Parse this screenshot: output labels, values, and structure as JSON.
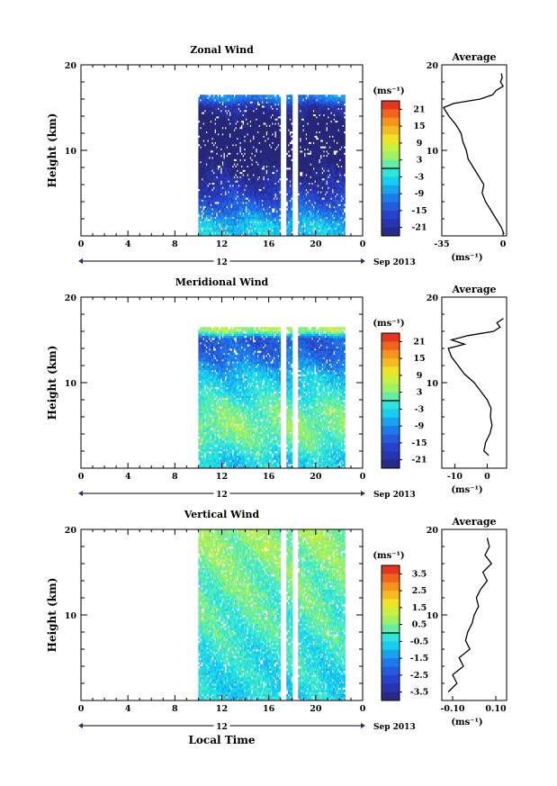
{
  "chart_data": [
    {
      "type": "heatmap",
      "title": "Zonal Wind",
      "ylabel": "Height (km)",
      "xlabel": "",
      "xlim": [
        0,
        24
      ],
      "ylim": [
        0,
        20
      ],
      "x_ticks": [
        "0",
        "4",
        "8",
        "12",
        "16",
        "20",
        "0"
      ],
      "x_tick_values": [
        0,
        4,
        8,
        12,
        16,
        20,
        24
      ],
      "y_ticks": [
        "20",
        "10"
      ],
      "date_label": "12",
      "date_suffix": "Sep 2013",
      "colorbar": {
        "unit": "(ms⁻¹)",
        "ticks": [
          "21",
          "15",
          "9",
          "3",
          "-3",
          "-9",
          "-15",
          "-21"
        ],
        "range": [
          -24,
          24
        ]
      },
      "data_window": {
        "start_hour": 10,
        "end_hour": 22.5,
        "bottom_km": 0,
        "top_km": 16.5
      },
      "gaps_hours": [
        17.2,
        18.2
      ],
      "profile_points": [
        {
          "height_km": 1,
          "value": -5
        },
        {
          "height_km": 3,
          "value": -12
        },
        {
          "height_km": 5,
          "value": -18
        },
        {
          "height_km": 7,
          "value": -22
        },
        {
          "height_km": 9,
          "value": -26
        },
        {
          "height_km": 11,
          "value": -28
        },
        {
          "height_km": 13,
          "value": -26
        },
        {
          "height_km": 15,
          "value": -20
        },
        {
          "height_km": 16,
          "value": -10
        }
      ],
      "average": {
        "title": "Average",
        "unit": "(ms⁻¹)",
        "xlim": [
          -35,
          2
        ],
        "x_ticks": [
          "-35",
          "0"
        ],
        "x_tick_values": [
          -35,
          0
        ],
        "y_ticks": [
          "20",
          "10"
        ],
        "profile": [
          {
            "height_km": 0.2,
            "value": 0.5
          },
          {
            "height_km": 1,
            "value": -1
          },
          {
            "height_km": 2,
            "value": -4
          },
          {
            "height_km": 3,
            "value": -7
          },
          {
            "height_km": 4,
            "value": -10
          },
          {
            "height_km": 5,
            "value": -12
          },
          {
            "height_km": 6,
            "value": -11
          },
          {
            "height_km": 7,
            "value": -14
          },
          {
            "height_km": 8,
            "value": -17
          },
          {
            "height_km": 9,
            "value": -20
          },
          {
            "height_km": 10,
            "value": -21
          },
          {
            "height_km": 11,
            "value": -23
          },
          {
            "height_km": 12,
            "value": -24
          },
          {
            "height_km": 13,
            "value": -27
          },
          {
            "height_km": 14,
            "value": -31
          },
          {
            "height_km": 15,
            "value": -34
          },
          {
            "height_km": 15.5,
            "value": -28
          },
          {
            "height_km": 16,
            "value": -13
          },
          {
            "height_km": 16.5,
            "value": -6
          },
          {
            "height_km": 17,
            "value": -4
          },
          {
            "height_km": 17.5,
            "value": 0
          },
          {
            "height_km": 18,
            "value": -1.5
          },
          {
            "height_km": 18.5,
            "value": -0.5
          },
          {
            "height_km": 19,
            "value": -1
          }
        ]
      }
    },
    {
      "type": "heatmap",
      "title": "Meridional Wind",
      "ylabel": "Height (km)",
      "xlabel": "",
      "xlim": [
        0,
        24
      ],
      "ylim": [
        0,
        20
      ],
      "x_ticks": [
        "0",
        "4",
        "8",
        "12",
        "16",
        "20",
        "0"
      ],
      "x_tick_values": [
        0,
        4,
        8,
        12,
        16,
        20,
        24
      ],
      "y_ticks": [
        "20",
        "10"
      ],
      "date_label": "12",
      "date_suffix": "Sep 2013",
      "colorbar": {
        "unit": "(ms⁻¹)",
        "ticks": [
          "21",
          "15",
          "9",
          "3",
          "-3",
          "-9",
          "-15",
          "-21"
        ],
        "range": [
          -24,
          24
        ]
      },
      "data_window": {
        "start_hour": 10,
        "end_hour": 22.5,
        "bottom_km": 0,
        "top_km": 16.5
      },
      "gaps_hours": [
        17.2,
        18.2
      ],
      "profile_points": [
        {
          "height_km": 1,
          "value": -4
        },
        {
          "height_km": 3,
          "value": 1
        },
        {
          "height_km": 5,
          "value": 3
        },
        {
          "height_km": 7,
          "value": 1
        },
        {
          "height_km": 9,
          "value": -3
        },
        {
          "height_km": 11,
          "value": -6
        },
        {
          "height_km": 13,
          "value": -12
        },
        {
          "height_km": 15,
          "value": -14
        },
        {
          "height_km": 16,
          "value": 5
        }
      ],
      "average": {
        "title": "Average",
        "unit": "(ms⁻¹)",
        "xlim": [
          -14,
          6
        ],
        "x_ticks": [
          "-10",
          "0"
        ],
        "x_tick_values": [
          -10,
          0
        ],
        "y_ticks": [
          "20",
          "10"
        ],
        "profile": [
          {
            "height_km": 1.5,
            "value": 0.5
          },
          {
            "height_km": 2,
            "value": -1
          },
          {
            "height_km": 3,
            "value": -0.5
          },
          {
            "height_km": 4,
            "value": 0.8
          },
          {
            "height_km": 5,
            "value": 1.5
          },
          {
            "height_km": 6,
            "value": 1
          },
          {
            "height_km": 7,
            "value": 1.2
          },
          {
            "height_km": 8,
            "value": 0
          },
          {
            "height_km": 9,
            "value": -2
          },
          {
            "height_km": 10,
            "value": -4
          },
          {
            "height_km": 11,
            "value": -7
          },
          {
            "height_km": 12,
            "value": -9
          },
          {
            "height_km": 13,
            "value": -11
          },
          {
            "height_km": 14,
            "value": -12
          },
          {
            "height_km": 14.5,
            "value": -7
          },
          {
            "height_km": 15,
            "value": -11
          },
          {
            "height_km": 15.5,
            "value": -6
          },
          {
            "height_km": 16,
            "value": 2
          },
          {
            "height_km": 16.5,
            "value": 4
          },
          {
            "height_km": 17,
            "value": 3
          },
          {
            "height_km": 17.5,
            "value": 5
          }
        ]
      }
    },
    {
      "type": "heatmap",
      "title": "Vertical Wind",
      "ylabel": "Height (km)",
      "xlabel": "Local Time",
      "xlim": [
        0,
        24
      ],
      "ylim": [
        0,
        20
      ],
      "x_ticks": [
        "0",
        "4",
        "8",
        "12",
        "16",
        "20",
        "0"
      ],
      "x_tick_values": [
        0,
        4,
        8,
        12,
        16,
        20,
        24
      ],
      "y_ticks": [
        "20",
        "10"
      ],
      "date_label": "12",
      "date_suffix": "Sep 2013",
      "colorbar": {
        "unit": "(ms⁻¹)",
        "ticks": [
          "3.5",
          "2.5",
          "1.5",
          "0.5",
          "-0.5",
          "-1.5",
          "-2.5",
          "-3.5"
        ],
        "range": [
          -4,
          4
        ]
      },
      "data_window": {
        "start_hour": 10,
        "end_hour": 22.5,
        "bottom_km": 0,
        "top_km": 20
      },
      "gaps_hours": [
        17.2,
        18.2
      ],
      "profile_points": [
        {
          "height_km": 1,
          "value": -0.6
        },
        {
          "height_km": 4,
          "value": -0.4
        },
        {
          "height_km": 8,
          "value": -0.1
        },
        {
          "height_km": 12,
          "value": 0.2
        },
        {
          "height_km": 16,
          "value": 0.4
        },
        {
          "height_km": 19,
          "value": 0.6
        }
      ],
      "average": {
        "title": "Average",
        "unit": "(ms⁻¹)",
        "xlim": [
          -0.15,
          0.15
        ],
        "x_ticks": [
          "-0.10",
          "0.10"
        ],
        "x_tick_values": [
          -0.1,
          0.1
        ],
        "y_ticks": [
          "20",
          "10"
        ],
        "profile": [
          {
            "height_km": 1,
            "value": -0.12
          },
          {
            "height_km": 2,
            "value": -0.08
          },
          {
            "height_km": 3,
            "value": -0.1
          },
          {
            "height_km": 4,
            "value": -0.05
          },
          {
            "height_km": 5,
            "value": -0.07
          },
          {
            "height_km": 6,
            "value": -0.02
          },
          {
            "height_km": 7,
            "value": -0.04
          },
          {
            "height_km": 8,
            "value": -0.03
          },
          {
            "height_km": 9,
            "value": -0.01
          },
          {
            "height_km": 10,
            "value": 0.0
          },
          {
            "height_km": 11,
            "value": 0.02
          },
          {
            "height_km": 12,
            "value": 0.01
          },
          {
            "height_km": 13,
            "value": 0.03
          },
          {
            "height_km": 14,
            "value": 0.06
          },
          {
            "height_km": 15,
            "value": 0.04
          },
          {
            "height_km": 16,
            "value": 0.08
          },
          {
            "height_km": 17,
            "value": 0.05
          },
          {
            "height_km": 18,
            "value": 0.07
          },
          {
            "height_km": 19,
            "value": 0.06
          }
        ]
      }
    }
  ]
}
